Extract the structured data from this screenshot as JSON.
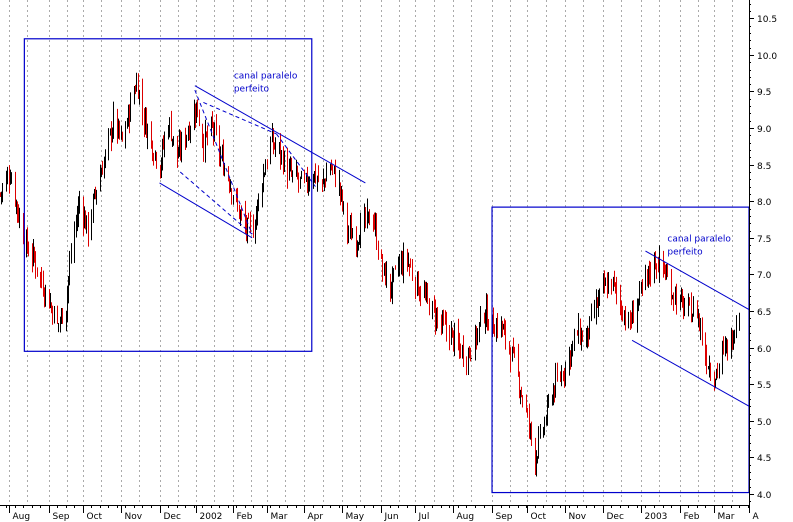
{
  "chart_data": {
    "type": "candlestick",
    "title": "",
    "xlabel": "",
    "ylabel": "",
    "ylim": [
      3.85,
      10.75
    ],
    "y_ticks": [
      4.0,
      4.5,
      5.0,
      5.5,
      6.0,
      6.5,
      7.0,
      7.5,
      8.0,
      8.5,
      9.0,
      9.5,
      10.0,
      10.5
    ],
    "y_axis_side": "right",
    "x_start": "2001-07-25",
    "x_end": "2003-04-01",
    "month_labels": [
      {
        "label": "Aug",
        "date": "2001-08-01"
      },
      {
        "label": "Sep",
        "date": "2001-09-03"
      },
      {
        "label": "Oct",
        "date": "2001-10-01"
      },
      {
        "label": "Nov",
        "date": "2001-11-01"
      },
      {
        "label": "Dec",
        "date": "2001-12-03"
      },
      {
        "label": "2002",
        "date": "2002-01-02"
      },
      {
        "label": "Feb",
        "date": "2002-02-01"
      },
      {
        "label": "Mar",
        "date": "2002-03-01"
      },
      {
        "label": "Apr",
        "date": "2002-04-01"
      },
      {
        "label": "May",
        "date": "2002-05-02"
      },
      {
        "label": "Jun",
        "date": "2002-06-03"
      },
      {
        "label": "Jul",
        "date": "2002-07-01"
      },
      {
        "label": "Aug",
        "date": "2002-08-01"
      },
      {
        "label": "Sep",
        "date": "2002-09-02"
      },
      {
        "label": "Oct",
        "date": "2002-10-01"
      },
      {
        "label": "Nov",
        "date": "2002-11-01"
      },
      {
        "label": "Dec",
        "date": "2002-12-02"
      },
      {
        "label": "2003",
        "date": "2003-01-02"
      },
      {
        "label": "Feb",
        "date": "2003-02-03"
      },
      {
        "label": "Mar",
        "date": "2003-03-03"
      },
      {
        "label": "A",
        "date": "2003-04-01"
      }
    ],
    "grid": "dotted-vertical",
    "colors": {
      "up": "#000000",
      "down": "#dd0000",
      "annotation": "#0000cc",
      "grid": "#aaaaaa"
    },
    "price_path": [
      [
        "2001-07-25",
        8.1
      ],
      [
        "2001-08-02",
        8.4
      ],
      [
        "2001-08-08",
        7.9
      ],
      [
        "2001-08-15",
        7.4
      ],
      [
        "2001-08-22",
        7.2
      ],
      [
        "2001-08-28",
        6.9
      ],
      [
        "2001-09-04",
        6.6
      ],
      [
        "2001-09-10",
        6.3
      ],
      [
        "2001-09-17",
        6.6
      ],
      [
        "2001-09-21",
        7.3
      ],
      [
        "2001-09-28",
        8.0
      ],
      [
        "2001-10-05",
        7.6
      ],
      [
        "2001-10-12",
        8.2
      ],
      [
        "2001-10-19",
        8.6
      ],
      [
        "2001-10-26",
        9.1
      ],
      [
        "2001-11-02",
        8.8
      ],
      [
        "2001-11-09",
        9.3
      ],
      [
        "2001-11-14",
        9.65
      ],
      [
        "2001-11-19",
        9.2
      ],
      [
        "2001-11-26",
        8.8
      ],
      [
        "2001-12-03",
        8.5
      ],
      [
        "2001-12-10",
        9.1
      ],
      [
        "2001-12-17",
        8.6
      ],
      [
        "2001-12-24",
        8.9
      ],
      [
        "2002-01-02",
        9.3
      ],
      [
        "2002-01-08",
        8.8
      ],
      [
        "2002-01-15",
        9.0
      ],
      [
        "2002-01-22",
        8.6
      ],
      [
        "2002-01-29",
        8.3
      ],
      [
        "2002-02-05",
        7.9
      ],
      [
        "2002-02-12",
        7.6
      ],
      [
        "2002-02-18",
        7.65
      ],
      [
        "2002-02-25",
        8.3
      ],
      [
        "2002-03-04",
        8.8
      ],
      [
        "2002-03-11",
        8.7
      ],
      [
        "2002-03-18",
        8.4
      ],
      [
        "2002-03-25",
        8.3
      ],
      [
        "2002-04-01",
        8.2
      ],
      [
        "2002-04-08",
        8.4
      ],
      [
        "2002-04-15",
        8.2
      ],
      [
        "2002-04-22",
        8.5
      ],
      [
        "2002-04-29",
        8.2
      ],
      [
        "2002-05-06",
        7.6
      ],
      [
        "2002-05-13",
        7.5
      ],
      [
        "2002-05-20",
        7.7
      ],
      [
        "2002-05-27",
        7.8
      ],
      [
        "2002-06-03",
        7.1
      ],
      [
        "2002-06-10",
        6.8
      ],
      [
        "2002-06-17",
        7.1
      ],
      [
        "2002-06-24",
        7.2
      ],
      [
        "2002-07-01",
        6.9
      ],
      [
        "2002-07-08",
        6.7
      ],
      [
        "2002-07-15",
        6.5
      ],
      [
        "2002-07-22",
        6.3
      ],
      [
        "2002-07-29",
        6.2
      ],
      [
        "2002-08-05",
        6.0
      ],
      [
        "2002-08-12",
        5.9
      ],
      [
        "2002-08-19",
        6.1
      ],
      [
        "2002-08-26",
        6.5
      ],
      [
        "2002-09-02",
        6.3
      ],
      [
        "2002-09-09",
        6.3
      ],
      [
        "2002-09-16",
        6.0
      ],
      [
        "2002-09-23",
        5.6
      ],
      [
        "2002-09-30",
        5.1
      ],
      [
        "2002-10-07",
        4.5
      ],
      [
        "2002-10-14",
        4.9
      ],
      [
        "2002-10-21",
        5.4
      ],
      [
        "2002-10-28",
        5.6
      ],
      [
        "2002-11-04",
        5.9
      ],
      [
        "2002-11-11",
        6.2
      ],
      [
        "2002-11-18",
        6.1
      ],
      [
        "2002-11-25",
        6.5
      ],
      [
        "2002-12-02",
        6.8
      ],
      [
        "2002-12-09",
        6.9
      ],
      [
        "2002-12-16",
        6.6
      ],
      [
        "2002-12-23",
        6.3
      ],
      [
        "2002-12-30",
        6.6
      ],
      [
        "2003-01-06",
        6.9
      ],
      [
        "2003-01-13",
        7.2
      ],
      [
        "2003-01-20",
        7.1
      ],
      [
        "2003-01-27",
        6.8
      ],
      [
        "2003-02-03",
        6.6
      ],
      [
        "2003-02-10",
        6.5
      ],
      [
        "2003-02-17",
        6.5
      ],
      [
        "2003-02-24",
        5.9
      ],
      [
        "2003-03-03",
        5.6
      ],
      [
        "2003-03-10",
        5.9
      ],
      [
        "2003-03-17",
        6.1
      ],
      [
        "2003-03-24",
        6.6
      ]
    ],
    "annotations": {
      "rectangles": [
        {
          "x0": "2001-08-14",
          "x1": "2002-04-07",
          "y0": 5.95,
          "y1": 10.22
        },
        {
          "x0": "2002-09-02",
          "x1": "2003-04-01",
          "y0": 4.02,
          "y1": 7.92
        }
      ],
      "lines": [
        {
          "style": "solid",
          "x0": "2002-01-01",
          "y0": 9.58,
          "x1": "2002-05-21",
          "y1": 8.25
        },
        {
          "style": "solid",
          "x0": "2001-12-03",
          "y0": 8.25,
          "x1": "2002-02-17",
          "y1": 7.5
        },
        {
          "style": "dashed",
          "x0": "2002-01-01",
          "y0": 9.52,
          "x1": "2002-02-17",
          "y1": 7.55
        },
        {
          "style": "dashed",
          "x0": "2002-03-09",
          "y0": 8.92,
          "x1": "2002-04-10",
          "y1": 8.2
        },
        {
          "style": "dashed",
          "x0": "2001-12-20",
          "y0": 8.4,
          "x1": "2002-02-17",
          "y1": 7.55
        },
        {
          "style": "dashed",
          "x0": "2002-01-08",
          "y0": 9.35,
          "x1": "2002-03-09",
          "y1": 8.92
        },
        {
          "style": "solid",
          "x0": "2003-01-06",
          "y0": 7.32,
          "x1": "2003-04-01",
          "y1": 6.52
        },
        {
          "style": "solid",
          "x0": "2002-12-26",
          "y0": 6.1,
          "x1": "2003-04-01",
          "y1": 5.2
        }
      ],
      "labels": [
        {
          "text": "canal paralelo",
          "x": "2002-02-02",
          "y": 9.68
        },
        {
          "text": "perfeito",
          "x": "2002-02-02",
          "y": 9.5
        },
        {
          "text": "canal paralelo",
          "x": "2003-01-24",
          "y": 7.45
        },
        {
          "text": "perfeito",
          "x": "2003-01-24",
          "y": 7.27
        }
      ]
    }
  }
}
